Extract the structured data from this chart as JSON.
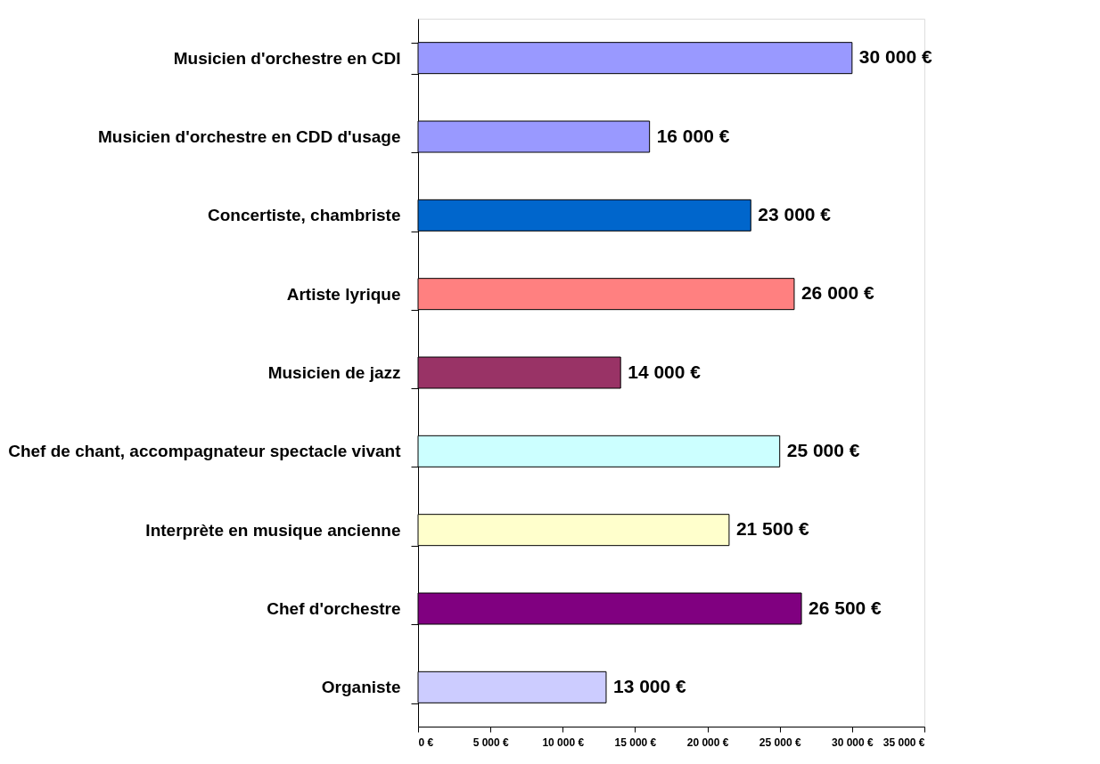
{
  "chart_data": {
    "type": "bar",
    "orientation": "horizontal",
    "categories": [
      "Musicien d'orchestre en CDI",
      "Musicien d'orchestre en CDD d'usage",
      "Concertiste, chambriste",
      "Artiste lyrique",
      "Musicien de jazz",
      "Chef de chant, accompagnateur spectacle vivant",
      "Interprète en musique ancienne",
      "Chef d'orchestre",
      "Organiste"
    ],
    "values": [
      30000,
      16000,
      23000,
      26000,
      14000,
      25000,
      21500,
      26500,
      13000
    ],
    "colors": [
      "#9999ff",
      "#9999ff",
      "#0066cc",
      "#ff8080",
      "#993366",
      "#ccffff",
      "#ffffcc",
      "#800080",
      "#ccccff"
    ],
    "value_labels": [
      "30 000 €",
      "16 000 €",
      "23 000 €",
      "26 000 €",
      "14 000 €",
      "25 000 €",
      "21 500 €",
      "26 500 €",
      "13 000 €"
    ],
    "xlim": [
      0,
      35000
    ],
    "xticks": [
      {
        "value": 0,
        "label": "0 €"
      },
      {
        "value": 5000,
        "label": "5 000 €"
      },
      {
        "value": 10000,
        "label": "10 000 €"
      },
      {
        "value": 15000,
        "label": "15 000 €"
      },
      {
        "value": 20000,
        "label": "20 000 €"
      },
      {
        "value": 25000,
        "label": "25 000 €"
      },
      {
        "value": 30000,
        "label": "30 000 €"
      },
      {
        "value": 35000,
        "label": "35 000 €"
      }
    ],
    "grid": false,
    "legend": false
  }
}
